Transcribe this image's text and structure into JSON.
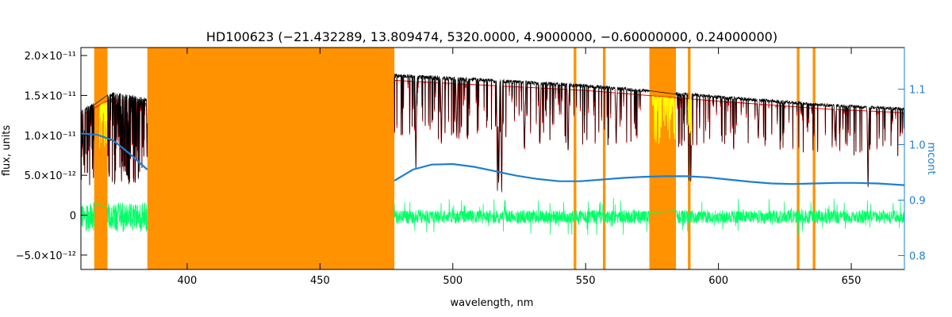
{
  "chart_data": {
    "type": "line",
    "title": "HD100623   (−21.432289, 13.809474, 5320.0000, 4.9000000, −0.60000000, 0.24000000)",
    "xlabel": "wavelength, nm",
    "ylabel": "flux, units",
    "ylabel_right": "mcont",
    "xlim": [
      360,
      670
    ],
    "ylim": [
      -6.8e-12,
      2.1e-11
    ],
    "ylim_right": [
      0.775,
      1.175
    ],
    "x_ticks": [
      400,
      450,
      500,
      550,
      600,
      650
    ],
    "x_tick_labels": [
      "400",
      "450",
      "500",
      "550",
      "600",
      "650"
    ],
    "y_ticks": [
      -5e-12,
      0,
      5e-12,
      1e-11,
      1.5e-11,
      2e-11
    ],
    "y_tick_labels": [
      "−5.0×10⁻¹²",
      "0",
      "5.0×10⁻¹²",
      "1.0×10⁻¹¹",
      "1.5×10⁻¹¹",
      "2.0×10⁻¹¹"
    ],
    "y_ticks_right": [
      0.8,
      0.9,
      1.0,
      1.1
    ],
    "y_tick_labels_right": [
      "0.8",
      "0.9",
      "1.0",
      "1.1"
    ],
    "masked_regions": [
      [
        365,
        370
      ],
      [
        385,
        478
      ],
      [
        545.5,
        546.5
      ],
      [
        556.5,
        557.5
      ],
      [
        574,
        584
      ],
      [
        588.5,
        589.5
      ],
      [
        629.5,
        630.5
      ],
      [
        635.5,
        636.5
      ]
    ],
    "series": [
      {
        "role": "observed",
        "color": "#000000",
        "continuum": [
          [
            360,
            1.3e-11
          ],
          [
            372,
            1.52e-11
          ],
          [
            385,
            1.45e-11
          ],
          [
            478,
            1.75e-11
          ],
          [
            550,
            1.62e-11
          ],
          [
            600,
            1.48e-11
          ],
          [
            640,
            1.38e-11
          ],
          [
            670,
            1.33e-11
          ]
        ],
        "absorption_lines": [
          [
            516.8,
            0.82
          ],
          [
            517.3,
            0.8
          ],
          [
            518.4,
            0.83
          ],
          [
            527.0,
            0.55
          ],
          [
            532.8,
            0.45
          ],
          [
            588.9,
            0.75
          ],
          [
            589.6,
            0.72
          ],
          [
            656.3,
            0.78
          ],
          [
            486.1,
            0.7
          ],
          [
            495.7,
            0.5
          ],
          [
            501.5,
            0.45
          ],
          [
            526.9,
            0.5
          ],
          [
            543.4,
            0.55
          ],
          [
            561.5,
            0.45
          ],
          [
            615.0,
            0.35
          ],
          [
            643.9,
            0.3
          ]
        ]
      },
      {
        "role": "synthetic",
        "color": "#ff0000"
      },
      {
        "role": "masked synthetic",
        "color": "#ffff00"
      },
      {
        "role": "residual",
        "color": "#00ff66",
        "center": -2e-13,
        "amplitude": 1.2e-12
      },
      {
        "role": "continuum model",
        "color": "#1e7fd0",
        "axis": "right",
        "points": [
          [
            360,
            1.02
          ],
          [
            366,
            1.018
          ],
          [
            372,
            1.008
          ],
          [
            378,
            0.985
          ],
          [
            385,
            0.955
          ],
          [
            478,
            0.935
          ],
          [
            485,
            0.955
          ],
          [
            492,
            0.964
          ],
          [
            500,
            0.965
          ],
          [
            508,
            0.96
          ],
          [
            516,
            0.952
          ],
          [
            524,
            0.944
          ],
          [
            532,
            0.938
          ],
          [
            540,
            0.934
          ],
          [
            548,
            0.934
          ],
          [
            556,
            0.937
          ],
          [
            564,
            0.94
          ],
          [
            572,
            0.942
          ],
          [
            580,
            0.943
          ],
          [
            588,
            0.943
          ],
          [
            596,
            0.941
          ],
          [
            604,
            0.937
          ],
          [
            612,
            0.933
          ],
          [
            620,
            0.93
          ],
          [
            628,
            0.929
          ],
          [
            636,
            0.93
          ],
          [
            644,
            0.931
          ],
          [
            652,
            0.931
          ],
          [
            660,
            0.93
          ],
          [
            670,
            0.927
          ]
        ]
      }
    ]
  },
  "colors": {
    "mask": "#ff9200",
    "right_axis": "#1e7fd0"
  }
}
